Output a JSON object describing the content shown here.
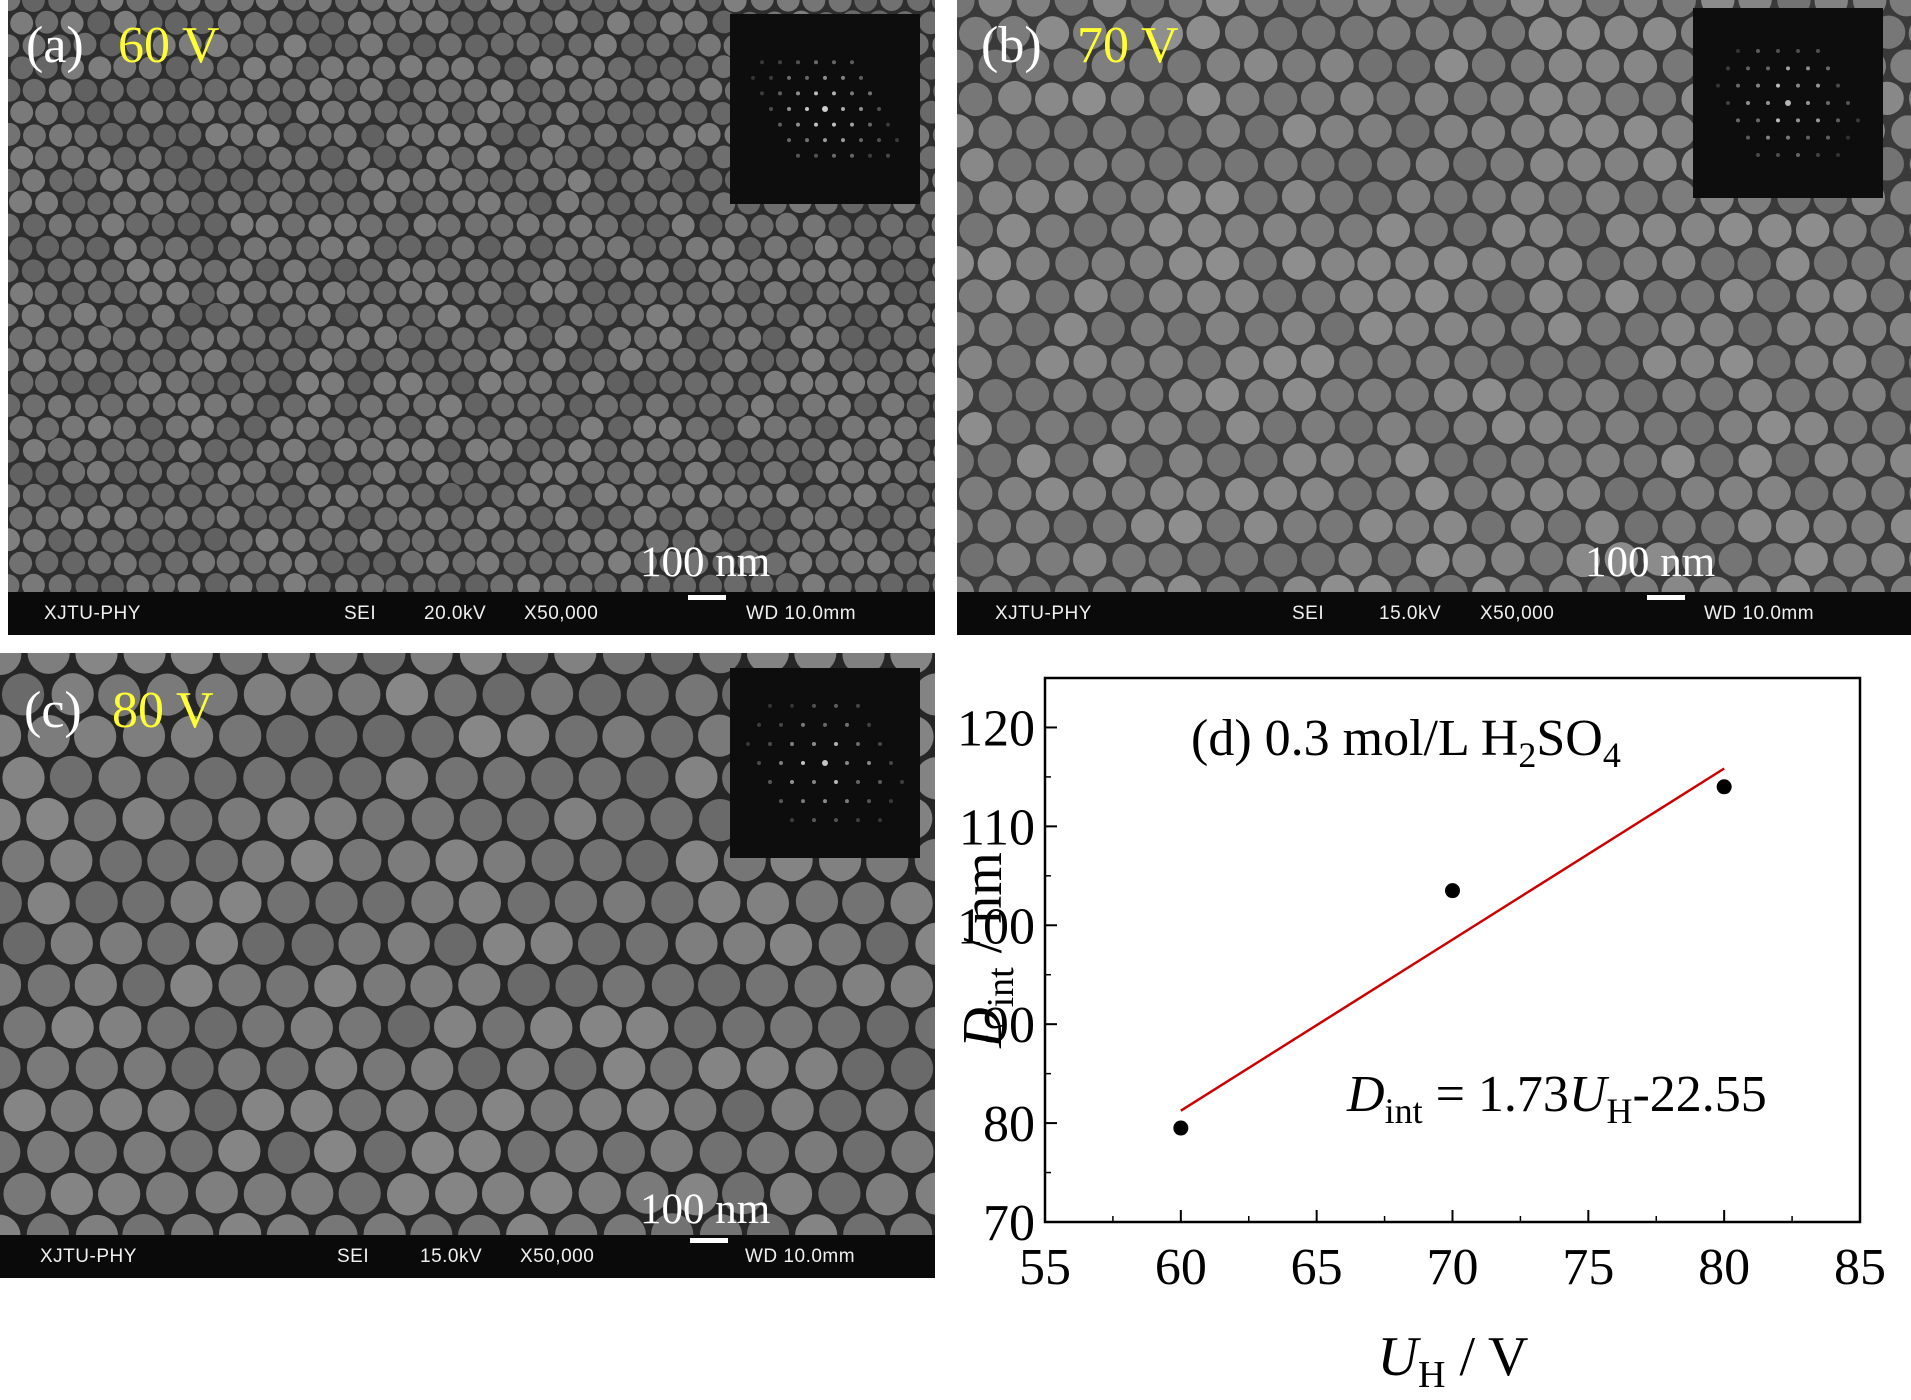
{
  "panels": [
    {
      "letter": "(a)",
      "voltage": "60 V",
      "scale_label": "100 nm",
      "footer": {
        "lab": "XJTU-PHY",
        "mode": "SEI",
        "kv": "20.0kV",
        "mag": "X50,000",
        "wd": "WD 10.0mm"
      },
      "texture": "fine-pore-array",
      "fft_icon": "fft-hexagonal-spots-icon"
    },
    {
      "letter": "(b)",
      "voltage": "70 V",
      "scale_label": "100 nm",
      "footer": {
        "lab": "XJTU-PHY",
        "mode": "SEI",
        "kv": "15.0kV",
        "mag": "X50,000",
        "wd": "WD 10.0mm"
      },
      "texture": "medium-pore-array",
      "fft_icon": "fft-hexagonal-spots-icon"
    },
    {
      "letter": "(c)",
      "voltage": "80 V",
      "scale_label": "100 nm",
      "footer": {
        "lab": "XJTU-PHY",
        "mode": "SEI",
        "kv": "15.0kV",
        "mag": "X50,000",
        "wd": "WD 10.0mm"
      },
      "texture": "coarse-pore-array",
      "fft_icon": "fft-hexagonal-spots-icon"
    }
  ],
  "chart_data": {
    "type": "scatter",
    "panel_label": "(d) 0.3 mol/L H2SO4",
    "xlabel": "UH / V",
    "ylabel": "Dint / nm",
    "equation": "Dint = 1.73UH-22.55",
    "xlim": [
      55,
      85
    ],
    "ylim": [
      70,
      125
    ],
    "xticks": [
      55,
      60,
      65,
      70,
      75,
      80,
      85
    ],
    "yticks": [
      70,
      80,
      90,
      100,
      110,
      120
    ],
    "x": [
      60,
      70,
      80
    ],
    "y": [
      79.5,
      103.5,
      114
    ],
    "fit": {
      "slope": 1.73,
      "intercept": -22.55,
      "x_range": [
        60,
        80
      ],
      "color": "#cc0000"
    },
    "point_color": "#000000",
    "grid": false
  }
}
